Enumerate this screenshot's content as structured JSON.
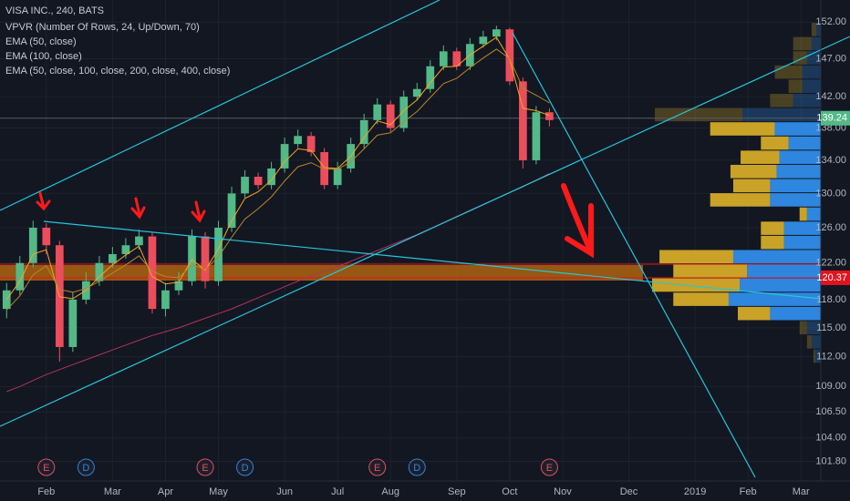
{
  "chart_data": {
    "type": "candlestick",
    "title": "VISA INC., 240, BATS",
    "categories": [
      null,
      null,
      null,
      "Feb",
      null,
      null,
      null,
      null,
      "Mar",
      null,
      null,
      null,
      "Apr",
      null,
      null,
      null,
      "May",
      null,
      null,
      null,
      null,
      "Jun",
      null,
      null,
      null,
      "Jul",
      null,
      null,
      null,
      "Aug",
      null,
      null,
      null,
      null,
      "Sep",
      null,
      null,
      null,
      "Oct",
      null,
      null,
      null,
      "Nov",
      null,
      null,
      null,
      null,
      "Dec",
      null,
      null,
      null,
      null,
      "2019",
      null,
      null,
      null,
      "Feb",
      null,
      null,
      null,
      "Mar",
      null
    ],
    "ohlc": {
      "up_color": "#53b987",
      "down_color": "#eb4d5c",
      "open": [
        117,
        119,
        122,
        126,
        124,
        113,
        118,
        120,
        122,
        123,
        124,
        125,
        117,
        119,
        120,
        125,
        120,
        126,
        130,
        132,
        131,
        133,
        136,
        137,
        135,
        131,
        133,
        136,
        139,
        141,
        138,
        142,
        143,
        146,
        148,
        146,
        149,
        150,
        151,
        144,
        134,
        140,
        null,
        null,
        null,
        null,
        null,
        null,
        null,
        null,
        null,
        null,
        null,
        null,
        null,
        null,
        null,
        null,
        null,
        null,
        null,
        null
      ],
      "high": [
        119.8,
        122.8,
        126.8,
        126.5,
        124.5,
        118.8,
        121,
        122.8,
        123.8,
        124.8,
        125.8,
        125.5,
        119.8,
        121,
        125.8,
        125.5,
        126.8,
        130.8,
        132.8,
        132.5,
        133.8,
        136.8,
        137.8,
        137.5,
        135.5,
        133.8,
        136.8,
        139.8,
        141.8,
        141.5,
        142.8,
        143.8,
        146.8,
        148.8,
        148.5,
        149.8,
        150.8,
        151.5,
        151.2,
        144.5,
        140.8,
        140.5,
        null,
        null,
        null,
        null,
        null,
        null,
        null,
        null,
        null,
        null,
        null,
        null,
        null,
        null,
        null,
        null,
        null,
        null,
        null,
        null
      ],
      "low": [
        116,
        118.5,
        121.5,
        123,
        111.5,
        112.5,
        117.5,
        119.5,
        121.5,
        122.5,
        123.5,
        116.5,
        116.2,
        118.5,
        119.5,
        119.2,
        119.5,
        125.5,
        129.5,
        130.5,
        130.5,
        132.5,
        135.5,
        134.5,
        130.5,
        130.5,
        132.5,
        135.5,
        138.5,
        137.5,
        137.5,
        141.5,
        142.5,
        145.5,
        145.5,
        145.5,
        148.5,
        149.5,
        143.5,
        133,
        133.5,
        138.2,
        null,
        null,
        null,
        null,
        null,
        null,
        null,
        null,
        null,
        null,
        null,
        null,
        null,
        null,
        null,
        null,
        null,
        null,
        null,
        null
      ],
      "close": [
        119,
        122,
        126,
        124,
        113,
        118,
        120,
        122,
        123,
        124,
        125,
        117,
        119,
        120,
        125,
        120,
        126,
        130,
        132,
        131,
        133,
        136,
        137,
        135,
        131,
        133,
        136,
        139,
        141,
        138,
        142,
        143,
        146,
        148,
        146,
        149,
        150,
        151,
        144,
        134,
        140,
        139,
        null,
        null,
        null,
        null,
        null,
        null,
        null,
        null,
        null,
        null,
        null,
        null,
        null,
        null,
        null,
        null,
        null,
        null,
        null,
        null
      ]
    },
    "series": [
      {
        "name": "EMA (50, close)",
        "color": "#f5a623",
        "values": [
          118,
          120,
          123,
          123.5,
          118.3,
          118.1,
          119,
          120.5,
          121.8,
          122.9,
          123.9,
          120.5,
          119.7,
          119.9,
          122.4,
          121.2,
          123.6,
          126.8,
          129.4,
          130.2,
          131.6,
          133.8,
          135.4,
          135.2,
          133.1,
          133,
          134.5,
          136.8,
          138.9,
          138.4,
          140.2,
          141.6,
          143.8,
          145.9,
          146,
          147.5,
          148.7,
          149.9,
          146.9,
          140.5,
          140.2,
          139.6,
          null,
          null,
          null,
          null,
          null,
          null,
          null,
          null,
          null,
          null,
          null,
          null,
          null,
          null,
          null,
          null,
          null,
          null,
          null,
          null
        ]
      },
      {
        "name": "EMA (100, close)",
        "color": "#b8862a",
        "values": [
          116.9,
          118.4,
          120.7,
          121.7,
          119.1,
          118.8,
          119.2,
          120,
          120.9,
          121.8,
          122.8,
          121.1,
          120.5,
          120.4,
          121.8,
          121.3,
          122.7,
          124.9,
          127,
          128.2,
          129.6,
          131.5,
          133.2,
          133.7,
          132.9,
          132.9,
          133.8,
          135.4,
          137.1,
          137.4,
          138.8,
          140.1,
          141.9,
          143.7,
          144.4,
          145.8,
          147.1,
          148.3,
          147,
          143.1,
          142.2,
          141.2,
          null,
          null,
          null,
          null,
          null,
          null,
          null,
          null,
          null,
          null,
          null,
          null,
          null,
          null,
          null,
          null,
          null,
          null,
          null,
          null
        ]
      },
      {
        "name": "EMA (50, close, 100, close, 200, close, 400, close)",
        "color": "#b0335d",
        "values": [
          108.5,
          109,
          109.6,
          110.2,
          110.7,
          111.2,
          111.7,
          112.2,
          112.7,
          113.2,
          113.7,
          114.2,
          114.6,
          115,
          115.5,
          116,
          116.5,
          117,
          117.6,
          118.2,
          118.8,
          119.4,
          120,
          120.6,
          121.1,
          121.6,
          122.2,
          122.8,
          123.4,
          124,
          124.6,
          125.2,
          125.9,
          126.6,
          127.3,
          128,
          128.7,
          129.4,
          130.1,
          130.8,
          131.6,
          132.4,
          null,
          null,
          null,
          null,
          null,
          null,
          null,
          null,
          null,
          null,
          null,
          null,
          null,
          null,
          null,
          null,
          null,
          null,
          null,
          null
        ]
      }
    ],
    "volume_profile": {
      "name": "VPVR (Number Of Rows, 24, Up/Down, 70)",
      "up_color": "#2e86de",
      "down_color": "#c9a227",
      "bins": [
        111.3,
        112.75,
        114.22,
        115.71,
        117.22,
        118.75,
        120.3,
        121.87,
        123.46,
        125.07,
        126.7,
        128.35,
        130.03,
        131.72,
        133.44,
        135.18,
        136.94,
        138.73,
        140.54,
        142.37,
        144.23,
        146.11,
        148.02,
        149.95,
        151.9
      ],
      "up": [
        6,
        10,
        15,
        55,
        100,
        88,
        80,
        95,
        40,
        40,
        15,
        55,
        55,
        48,
        45,
        35,
        50,
        85,
        30,
        20,
        20,
        15,
        10,
        5
      ],
      "down": [
        2,
        5,
        8,
        35,
        60,
        95,
        80,
        80,
        25,
        25,
        8,
        65,
        40,
        50,
        42,
        30,
        70,
        95,
        25,
        15,
        30,
        15,
        20,
        5
      ],
      "value_area": [
        115.71,
        138.73
      ]
    },
    "events": [
      {
        "label": "E",
        "index": 3
      },
      {
        "label": "D",
        "index": 6
      },
      {
        "label": "E",
        "index": 15
      },
      {
        "label": "D",
        "index": 18
      },
      {
        "label": "E",
        "index": 28
      },
      {
        "label": "D",
        "index": 31
      },
      {
        "label": "E",
        "index": 41
      }
    ],
    "last_price": {
      "value": 139.24,
      "label": "139.24",
      "color": "#53b987"
    },
    "price_line": {
      "value": 120.37,
      "label": "120.37",
      "color": "#e0141e"
    },
    "log_scale": true,
    "grid": true,
    "ylim": [
      100.0,
      155.1
    ],
    "yticks": [
      {
        "value": 152,
        "label": "152.00"
      },
      {
        "value": 147,
        "label": "147.00"
      },
      {
        "value": 142,
        "label": "142.00"
      },
      {
        "value": 138,
        "label": "138.00"
      },
      {
        "value": 134,
        "label": "134.00"
      },
      {
        "value": 130,
        "label": "130.00"
      },
      {
        "value": 126,
        "label": "126.00"
      },
      {
        "value": 122,
        "label": "122.00"
      },
      {
        "value": 118,
        "label": "118.00"
      },
      {
        "value": 115,
        "label": "115.00"
      },
      {
        "value": 112,
        "label": "112.00"
      },
      {
        "value": 109,
        "label": "109.00"
      },
      {
        "value": 106.5,
        "label": "106.50"
      },
      {
        "value": 104,
        "label": "104.00"
      },
      {
        "value": 101.8,
        "label": "101.80"
      }
    ]
  }
}
